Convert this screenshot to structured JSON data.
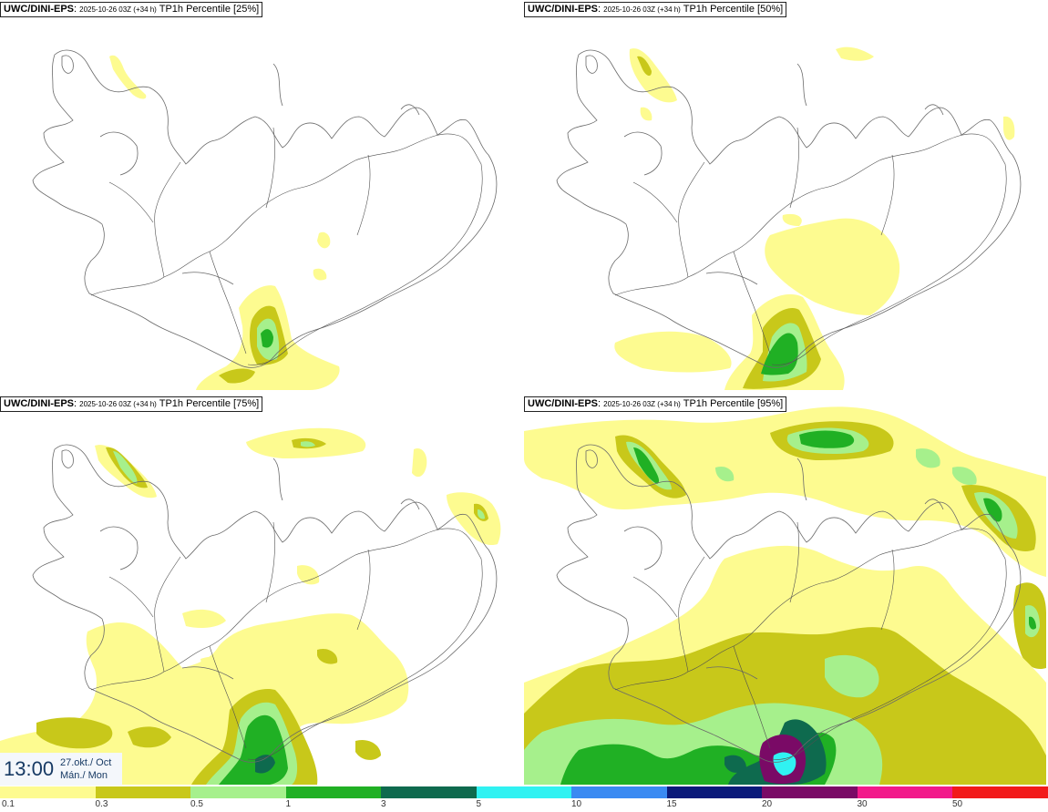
{
  "panels": [
    {
      "model": "UWC/DINI-EPS",
      "run": "2025-10-26 03Z (+34 h)",
      "product": "TP1h Percentile [25%]"
    },
    {
      "model": "UWC/DINI-EPS",
      "run": "2025-10-26 03Z (+34 h)",
      "product": "TP1h Percentile [50%]"
    },
    {
      "model": "UWC/DINI-EPS",
      "run": "2025-10-26 03Z (+34 h)",
      "product": "TP1h Percentile [75%]"
    },
    {
      "model": "UWC/DINI-EPS",
      "run": "2025-10-26 03Z (+34 h)",
      "product": "TP1h Percentile [95%]"
    }
  ],
  "valid_time": {
    "time": "13:00",
    "date": "27.okt./ Oct",
    "day": "Mán./ Mon"
  },
  "legend": {
    "labels": [
      "0.1",
      "0.3",
      "0.5",
      "1",
      "3",
      "5",
      "10",
      "15",
      "20",
      "30",
      "50"
    ],
    "colors": [
      "#fdfb90",
      "#c8c81a",
      "#a6f08c",
      "#20b024",
      "#0e6a4e",
      "#30f2f2",
      "#3a8af2",
      "#0a1a7a",
      "#7a0a66",
      "#f21a8a",
      "#f21a1a"
    ]
  },
  "colors": {
    "coast": "#6a6a6a",
    "roads": "#505050"
  }
}
